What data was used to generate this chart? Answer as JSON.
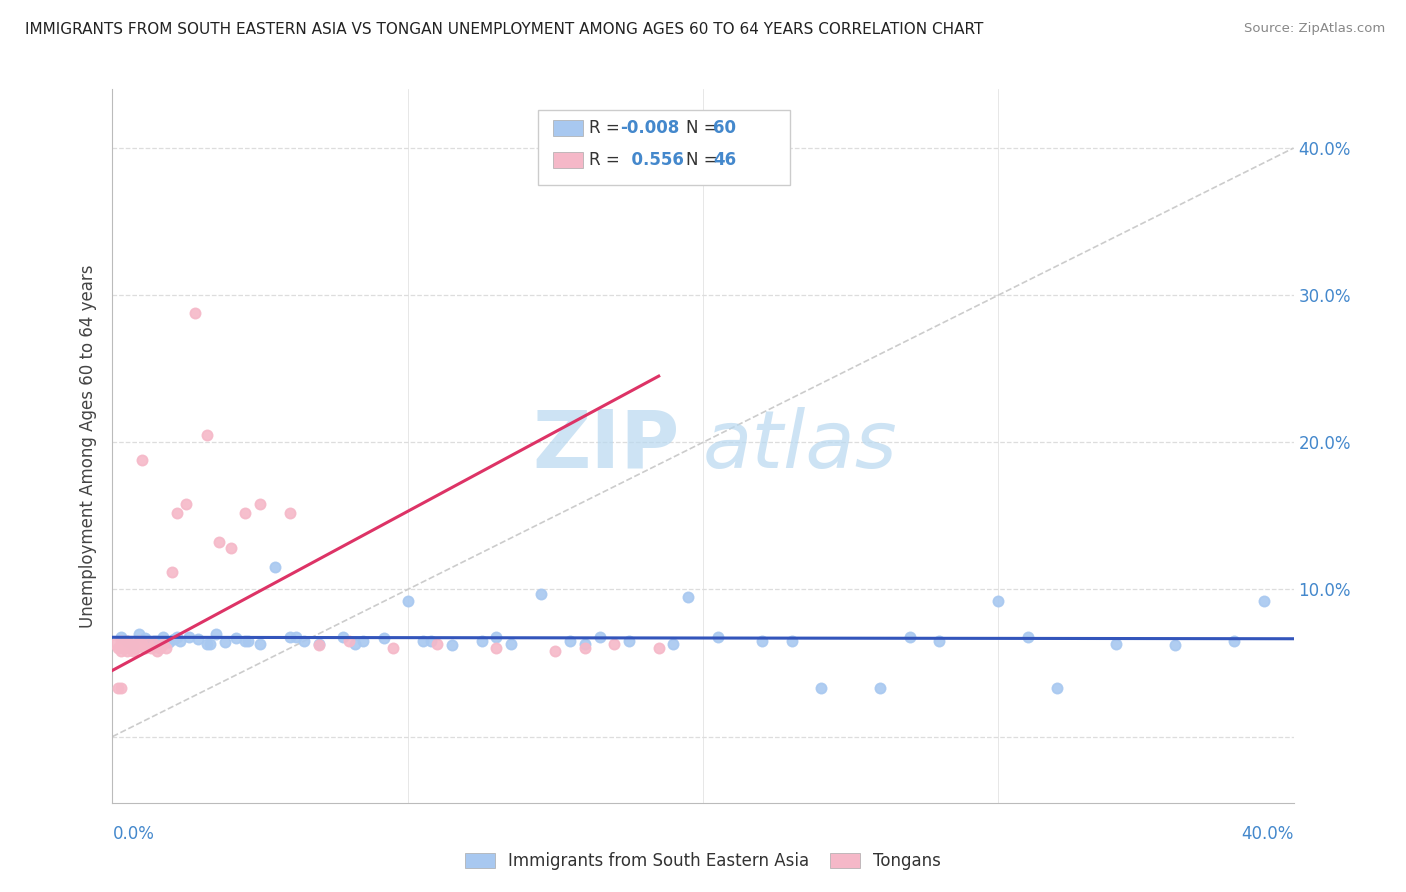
{
  "title": "IMMIGRANTS FROM SOUTH EASTERN ASIA VS TONGAN UNEMPLOYMENT AMONG AGES 60 TO 64 YEARS CORRELATION CHART",
  "source": "Source: ZipAtlas.com",
  "ylabel": "Unemployment Among Ages 60 to 64 years",
  "xlim": [
    0.0,
    0.4
  ],
  "ylim": [
    -0.045,
    0.44
  ],
  "color_blue": "#a8c8f0",
  "color_pink": "#f5b8c8",
  "color_line_blue": "#3355bb",
  "color_line_pink": "#dd3366",
  "color_trend_gray": "#cccccc",
  "color_text_blue": "#4488cc",
  "color_grid": "#dddddd",
  "watermark_color": "#d8eaf8",
  "blue_x": [
    0.003,
    0.005,
    0.007,
    0.009,
    0.011,
    0.013,
    0.015,
    0.017,
    0.019,
    0.021,
    0.023,
    0.026,
    0.029,
    0.032,
    0.035,
    0.038,
    0.042,
    0.046,
    0.05,
    0.055,
    0.06,
    0.065,
    0.07,
    0.078,
    0.085,
    0.092,
    0.1,
    0.108,
    0.115,
    0.125,
    0.135,
    0.145,
    0.155,
    0.165,
    0.175,
    0.19,
    0.205,
    0.22,
    0.24,
    0.26,
    0.28,
    0.3,
    0.32,
    0.34,
    0.36,
    0.38,
    0.39,
    0.31,
    0.27,
    0.23,
    0.195,
    0.16,
    0.13,
    0.105,
    0.082,
    0.062,
    0.045,
    0.033,
    0.022,
    0.014
  ],
  "blue_y": [
    0.068,
    0.065,
    0.062,
    0.07,
    0.067,
    0.063,
    0.065,
    0.068,
    0.064,
    0.066,
    0.065,
    0.068,
    0.066,
    0.063,
    0.07,
    0.064,
    0.067,
    0.065,
    0.063,
    0.115,
    0.068,
    0.065,
    0.063,
    0.068,
    0.065,
    0.067,
    0.092,
    0.065,
    0.062,
    0.065,
    0.063,
    0.097,
    0.065,
    0.068,
    0.065,
    0.063,
    0.068,
    0.065,
    0.033,
    0.033,
    0.065,
    0.092,
    0.033,
    0.063,
    0.062,
    0.065,
    0.092,
    0.068,
    0.068,
    0.065,
    0.095,
    0.063,
    0.068,
    0.065,
    0.063,
    0.068,
    0.065,
    0.063,
    0.068,
    0.065
  ],
  "pink_x": [
    0.001,
    0.002,
    0.003,
    0.003,
    0.004,
    0.004,
    0.005,
    0.005,
    0.006,
    0.006,
    0.007,
    0.007,
    0.008,
    0.008,
    0.009,
    0.01,
    0.01,
    0.011,
    0.012,
    0.013,
    0.014,
    0.015,
    0.016,
    0.017,
    0.018,
    0.02,
    0.022,
    0.025,
    0.028,
    0.032,
    0.036,
    0.04,
    0.045,
    0.05,
    0.06,
    0.07,
    0.08,
    0.095,
    0.11,
    0.13,
    0.15,
    0.16,
    0.17,
    0.185,
    0.002,
    0.003
  ],
  "pink_y": [
    0.063,
    0.06,
    0.058,
    0.065,
    0.06,
    0.063,
    0.058,
    0.065,
    0.06,
    0.063,
    0.058,
    0.06,
    0.063,
    0.06,
    0.065,
    0.063,
    0.188,
    0.06,
    0.063,
    0.06,
    0.063,
    0.058,
    0.06,
    0.063,
    0.06,
    0.112,
    0.152,
    0.158,
    0.288,
    0.205,
    0.132,
    0.128,
    0.152,
    0.158,
    0.152,
    0.062,
    0.065,
    0.06,
    0.063,
    0.06,
    0.058,
    0.06,
    0.063,
    0.06,
    0.033,
    0.033
  ],
  "blue_line_x": [
    0.0,
    0.4
  ],
  "blue_line_y": [
    0.0675,
    0.0665
  ],
  "pink_line_x": [
    0.0,
    0.185
  ],
  "pink_line_y": [
    0.045,
    0.245
  ]
}
